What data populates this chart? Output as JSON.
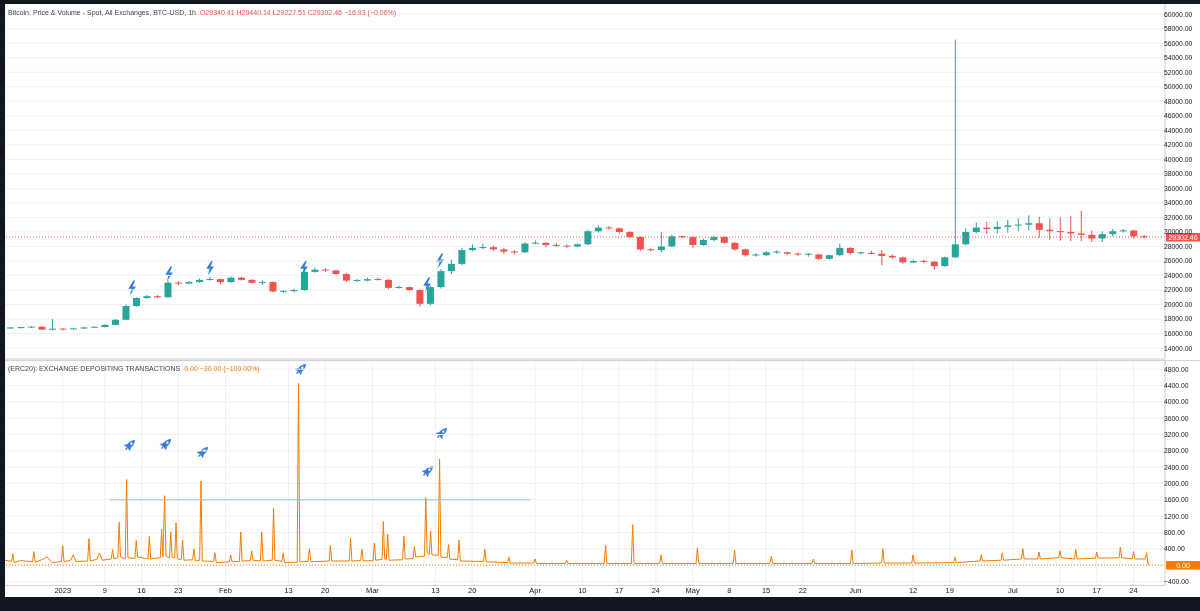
{
  "chart_data": [
    {
      "type": "candlestick",
      "title": "Bitcoin: Price & Volume - Spot, All Exchanges, BTC-USD, 1h",
      "subtitle": "O29340.41 H29440.14 L29227.51 C29302.46 −16.93 (−0.06%)",
      "x": [
        "2022-12-22",
        "2022-12-24",
        "2022-12-26",
        "2022-12-28",
        "2022-12-30",
        "2023-01-01",
        "2023-01-03",
        "2023-01-05",
        "2023-01-07",
        "2023-01-09",
        "2023-01-11",
        "2023-01-13",
        "2023-01-15",
        "2023-01-17",
        "2023-01-19",
        "2023-01-21",
        "2023-01-23",
        "2023-01-25",
        "2023-01-27",
        "2023-01-29",
        "2023-01-31",
        "2023-02-02",
        "2023-02-04",
        "2023-02-06",
        "2023-02-08",
        "2023-02-10",
        "2023-02-12",
        "2023-02-14",
        "2023-02-16",
        "2023-02-18",
        "2023-02-20",
        "2023-02-22",
        "2023-02-24",
        "2023-02-26",
        "2023-02-28",
        "2023-03-02",
        "2023-03-04",
        "2023-03-06",
        "2023-03-08",
        "2023-03-10",
        "2023-03-12",
        "2023-03-14",
        "2023-03-16",
        "2023-03-18",
        "2023-03-20",
        "2023-03-22",
        "2023-03-24",
        "2023-03-26",
        "2023-03-28",
        "2023-03-30",
        "2023-04-01",
        "2023-04-03",
        "2023-04-05",
        "2023-04-07",
        "2023-04-09",
        "2023-04-11",
        "2023-04-13",
        "2023-04-15",
        "2023-04-17",
        "2023-04-19",
        "2023-04-21",
        "2023-04-23",
        "2023-04-25",
        "2023-04-27",
        "2023-04-29",
        "2023-05-01",
        "2023-05-03",
        "2023-05-05",
        "2023-05-07",
        "2023-05-09",
        "2023-05-11",
        "2023-05-13",
        "2023-05-15",
        "2023-05-17",
        "2023-05-19",
        "2023-05-21",
        "2023-05-23",
        "2023-05-25",
        "2023-05-27",
        "2023-05-29",
        "2023-05-31",
        "2023-06-02",
        "2023-06-04",
        "2023-06-06",
        "2023-06-08",
        "2023-06-10",
        "2023-06-12",
        "2023-06-14",
        "2023-06-16",
        "2023-06-18",
        "2023-06-20",
        "2023-06-22",
        "2023-06-24",
        "2023-06-26",
        "2023-06-28",
        "2023-06-30",
        "2023-07-02",
        "2023-07-04",
        "2023-07-06",
        "2023-07-08",
        "2023-07-10",
        "2023-07-12",
        "2023-07-14",
        "2023-07-16",
        "2023-07-18",
        "2023-07-20",
        "2023-07-22",
        "2023-07-24",
        "2023-07-26"
      ],
      "ohlc": [
        [
          16750,
          16900,
          16650,
          16800
        ],
        [
          16800,
          16950,
          16700,
          16850
        ],
        [
          16850,
          17000,
          16750,
          16950
        ],
        [
          16950,
          17000,
          16500,
          16550
        ],
        [
          16550,
          18000,
          16450,
          16650
        ],
        [
          16650,
          16750,
          16450,
          16600
        ],
        [
          16600,
          16800,
          16550,
          16700
        ],
        [
          16700,
          16950,
          16650,
          16850
        ],
        [
          16850,
          17000,
          16800,
          16900
        ],
        [
          16900,
          17300,
          16850,
          17200
        ],
        [
          17200,
          18000,
          17150,
          17900
        ],
        [
          17900,
          20000,
          17850,
          19800
        ],
        [
          19800,
          21000,
          19700,
          20900
        ],
        [
          20900,
          21300,
          20800,
          21150
        ],
        [
          21150,
          21300,
          20900,
          21000
        ],
        [
          21000,
          23300,
          20950,
          23000
        ],
        [
          23000,
          23200,
          22700,
          22900
        ],
        [
          22900,
          23250,
          22800,
          23100
        ],
        [
          23100,
          23600,
          23000,
          23400
        ],
        [
          23400,
          23800,
          23300,
          23500
        ],
        [
          23500,
          23600,
          22800,
          23100
        ],
        [
          23100,
          23900,
          23000,
          23700
        ],
        [
          23700,
          23800,
          23300,
          23400
        ],
        [
          23400,
          23500,
          22900,
          23000
        ],
        [
          23000,
          23300,
          22700,
          23100
        ],
        [
          23100,
          23200,
          21700,
          21800
        ],
        [
          21800,
          22000,
          21600,
          21850
        ],
        [
          21850,
          22200,
          21700,
          22000
        ],
        [
          22000,
          24800,
          21900,
          24500
        ],
        [
          24500,
          25100,
          24400,
          24800
        ],
        [
          24800,
          25000,
          24500,
          24700
        ],
        [
          24700,
          24800,
          24100,
          24200
        ],
        [
          24200,
          24300,
          23100,
          23300
        ],
        [
          23300,
          23500,
          23100,
          23350
        ],
        [
          23300,
          23700,
          23200,
          23500
        ],
        [
          23500,
          23700,
          23300,
          23400
        ],
        [
          23400,
          23500,
          22100,
          22300
        ],
        [
          22300,
          22600,
          22200,
          22400
        ],
        [
          22400,
          22500,
          21900,
          22000
        ],
        [
          22000,
          22100,
          19700,
          20100
        ],
        [
          20100,
          22600,
          19900,
          22400
        ],
        [
          22400,
          24900,
          22200,
          24600
        ],
        [
          24600,
          26200,
          24200,
          25600
        ],
        [
          25600,
          27800,
          25400,
          27500
        ],
        [
          27500,
          28300,
          27300,
          27800
        ],
        [
          27800,
          28400,
          27600,
          27900
        ],
        [
          27900,
          28100,
          27400,
          27600
        ],
        [
          27600,
          27800,
          27000,
          27300
        ],
        [
          27300,
          27500,
          26900,
          27200
        ],
        [
          27200,
          28600,
          27100,
          28400
        ],
        [
          28400,
          28800,
          28300,
          28500
        ],
        [
          28500,
          28600,
          27900,
          28200
        ],
        [
          28200,
          28500,
          27900,
          28100
        ],
        [
          28100,
          28300,
          27800,
          28000
        ],
        [
          28000,
          28400,
          27900,
          28300
        ],
        [
          28300,
          30300,
          28200,
          30100
        ],
        [
          30100,
          30900,
          29900,
          30600
        ],
        [
          30600,
          30800,
          30300,
          30500
        ],
        [
          30500,
          30600,
          29800,
          30000
        ],
        [
          30000,
          30100,
          29100,
          29300
        ],
        [
          29300,
          29400,
          27400,
          27600
        ],
        [
          27600,
          27800,
          27300,
          27500
        ],
        [
          27500,
          30000,
          27200,
          28000
        ],
        [
          28000,
          29600,
          27900,
          29400
        ],
        [
          29400,
          29500,
          29100,
          29300
        ],
        [
          29300,
          29400,
          27800,
          28200
        ],
        [
          28200,
          29100,
          28100,
          28900
        ],
        [
          28900,
          29500,
          28700,
          29300
        ],
        [
          29300,
          29400,
          28400,
          28500
        ],
        [
          28500,
          28600,
          27400,
          27600
        ],
        [
          27600,
          27700,
          26600,
          26800
        ],
        [
          26800,
          27100,
          26600,
          26850
        ],
        [
          26800,
          27400,
          26700,
          27200
        ],
        [
          27200,
          27500,
          27000,
          27250
        ],
        [
          27200,
          27300,
          26800,
          27000
        ],
        [
          27000,
          27200,
          26700,
          26900
        ],
        [
          26900,
          27100,
          26600,
          26950
        ],
        [
          26900,
          27000,
          26100,
          26300
        ],
        [
          26300,
          26900,
          26200,
          26800
        ],
        [
          26800,
          28400,
          26700,
          27800
        ],
        [
          27800,
          27900,
          26900,
          27100
        ],
        [
          27100,
          27300,
          26900,
          27150
        ],
        [
          27100,
          27400,
          26900,
          27000
        ],
        [
          27000,
          27500,
          25400,
          26700
        ],
        [
          26700,
          26900,
          26300,
          26500
        ],
        [
          26500,
          26600,
          25600,
          25800
        ],
        [
          25800,
          26200,
          25700,
          26000
        ],
        [
          26000,
          26200,
          25700,
          25900
        ],
        [
          25900,
          26000,
          24800,
          25300
        ],
        [
          25300,
          26600,
          25200,
          26500
        ],
        [
          26500,
          56500,
          26400,
          28300
        ],
        [
          28300,
          30500,
          28200,
          30000
        ],
        [
          30000,
          31300,
          29800,
          30600
        ],
        [
          30600,
          31400,
          29700,
          30400
        ],
        [
          30400,
          31500,
          29800,
          30700
        ],
        [
          30700,
          31700,
          29900,
          30900
        ],
        [
          30900,
          31900,
          30100,
          31000
        ],
        [
          31000,
          32300,
          30200,
          31200
        ],
        [
          31200,
          32100,
          29200,
          30300
        ],
        [
          30300,
          31900,
          28900,
          30100
        ],
        [
          30100,
          32000,
          28800,
          30000
        ],
        [
          30000,
          32200,
          28700,
          29800
        ],
        [
          29800,
          32900,
          28700,
          29600
        ],
        [
          29600,
          30200,
          28600,
          29100
        ],
        [
          29100,
          30100,
          28600,
          29700
        ],
        [
          29700,
          30400,
          29400,
          30100
        ],
        [
          30100,
          30400,
          29900,
          30200
        ],
        [
          30200,
          30300,
          29100,
          29400
        ],
        [
          29400,
          29600,
          29100,
          29300
        ]
      ],
      "colors": [
        "#26a69a",
        "#26a69a",
        "#26a69a",
        "#ef5350",
        "#26a69a",
        "#ef5350",
        "#26a69a",
        "#26a69a",
        "#26a69a",
        "#26a69a",
        "#26a69a",
        "#26a69a",
        "#26a69a",
        "#26a69a",
        "#ef5350",
        "#26a69a",
        "#ef5350",
        "#26a69a",
        "#26a69a",
        "#26a69a",
        "#ef5350",
        "#26a69a",
        "#ef5350",
        "#ef5350",
        "#26a69a",
        "#ef5350",
        "#26a69a",
        "#26a69a",
        "#26a69a",
        "#26a69a",
        "#ef5350",
        "#ef5350",
        "#ef5350",
        "#26a69a",
        "#26a69a",
        "#ef5350",
        "#ef5350",
        "#26a69a",
        "#ef5350",
        "#ef5350",
        "#26a69a",
        "#26a69a",
        "#26a69a",
        "#26a69a",
        "#26a69a",
        "#26a69a",
        "#ef5350",
        "#ef5350",
        "#ef5350",
        "#26a69a",
        "#26a69a",
        "#ef5350",
        "#ef5350",
        "#ef5350",
        "#26a69a",
        "#26a69a",
        "#26a69a",
        "#ef5350",
        "#ef5350",
        "#ef5350",
        "#ef5350",
        "#ef5350",
        "#26a69a",
        "#26a69a",
        "#ef5350",
        "#ef5350",
        "#26a69a",
        "#26a69a",
        "#ef5350",
        "#ef5350",
        "#ef5350",
        "#26a69a",
        "#26a69a",
        "#26a69a",
        "#ef5350",
        "#ef5350",
        "#26a69a",
        "#ef5350",
        "#26a69a",
        "#26a69a",
        "#ef5350",
        "#26a69a",
        "#ef5350",
        "#ef5350",
        "#ef5350",
        "#ef5350",
        "#26a69a",
        "#ef5350",
        "#ef5350",
        "#26a69a",
        "#26a69a",
        "#26a69a",
        "#26a69a",
        "#ef5350",
        "#26a69a",
        "#26a69a",
        "#26a69a",
        "#26a69a",
        "#ef5350",
        "#ef5350",
        "#ef5350",
        "#ef5350",
        "#ef5350",
        "#ef5350",
        "#26a69a",
        "#26a69a",
        "#26a69a",
        "#ef5350",
        "#ef5350"
      ],
      "xlim": [
        "2022-12-21",
        "2023-07-30"
      ],
      "xticks": [
        {
          "value": "2023-01-01",
          "label": null
        },
        {
          "value": "2023-01-09",
          "label": null
        },
        {
          "value": "2023-01-16",
          "label": null
        },
        {
          "value": "2023-01-23",
          "label": null
        },
        {
          "value": "2023-02-01",
          "label": null
        },
        {
          "value": "2023-02-13",
          "label": null
        },
        {
          "value": "2023-02-20",
          "label": null
        },
        {
          "value": "2023-03-01",
          "label": null
        },
        {
          "value": "2023-03-13",
          "label": null
        },
        {
          "value": "2023-03-20",
          "label": null
        },
        {
          "value": "2023-04-01",
          "label": null
        },
        {
          "value": "2023-04-10",
          "label": null
        },
        {
          "value": "2023-04-17",
          "label": null
        },
        {
          "value": "2023-04-24",
          "label": null
        },
        {
          "value": "2023-05-01",
          "label": null
        },
        {
          "value": "2023-05-08",
          "label": null
        },
        {
          "value": "2023-05-15",
          "label": null
        },
        {
          "value": "2023-05-22",
          "label": null
        },
        {
          "value": "2023-06-01",
          "label": null
        },
        {
          "value": "2023-06-12",
          "label": null
        },
        {
          "value": "2023-06-19",
          "label": null
        },
        {
          "value": "2023-07-01",
          "label": null
        },
        {
          "value": "2023-07-10",
          "label": null
        },
        {
          "value": "2023-07-17",
          "label": null
        },
        {
          "value": "2023-07-24",
          "label": null
        }
      ],
      "ylim": [
        12500,
        61400
      ],
      "yticks": [
        {
          "value": 14000,
          "label": "14000.00"
        },
        {
          "value": 16000,
          "label": "16000.00"
        },
        {
          "value": 18000,
          "label": "18000.00"
        },
        {
          "value": 20000,
          "label": "20000.00"
        },
        {
          "value": 22000,
          "label": "22000.00"
        },
        {
          "value": 24000,
          "label": "24000.00"
        },
        {
          "value": 26000,
          "label": "26000.00"
        },
        {
          "value": 28000,
          "label": "28000.00"
        },
        {
          "value": 30000,
          "label": "30000.00"
        },
        {
          "value": 32000,
          "label": "32000.00"
        },
        {
          "value": 34000,
          "label": "34000.00"
        },
        {
          "value": 36000,
          "label": "36000.00"
        },
        {
          "value": 38000,
          "label": "38000.00"
        },
        {
          "value": 40000,
          "label": "40000.00"
        },
        {
          "value": 42000,
          "label": "42000.00"
        },
        {
          "value": 44000,
          "label": "44000.00"
        },
        {
          "value": 46000,
          "label": "46000.00"
        },
        {
          "value": 48000,
          "label": "48000.00"
        },
        {
          "value": 50000,
          "label": "50000.00"
        },
        {
          "value": 52000,
          "label": "52000.00"
        },
        {
          "value": 54000,
          "label": "54000.00"
        },
        {
          "value": 56000,
          "label": "56000.00"
        },
        {
          "value": 58000,
          "label": "58000.00"
        },
        {
          "value": 60000,
          "label": "60000.00"
        }
      ],
      "tick_labels": "y",
      "grid": true,
      "ref_lines": [
        {
          "axis": "y",
          "value": 29302.46,
          "label": "29302.46",
          "color": "#ef5350",
          "line_style": "dotted"
        }
      ]
    },
    {
      "type": "line",
      "title": "(ERC20): EXCHANGE DEPOSITING TRANSACTIONS",
      "subtitle": "0.00 −30.00 (−100.00%)",
      "series": [
        {
          "color": "#f57c00",
          "x": [
            "2022-12-21T00:00",
            "2022-12-22T06:00",
            "2022-12-22T12:00",
            "2022-12-22T18:00",
            "2022-12-24T00:00",
            "2022-12-26T06:00",
            "2022-12-26T12:00",
            "2022-12-26T18:00",
            "2022-12-28T00:00",
            "2022-12-29T00:00",
            "2022-12-30T00:00",
            "2022-12-31T18:00",
            "2023-01-01T00:00",
            "2023-01-01T06:00",
            "2023-01-02T12:00",
            "2023-01-03T00:00",
            "2023-01-03T12:00",
            "2023-01-05T18:00",
            "2023-01-06T00:00",
            "2023-01-06T06:00",
            "2023-01-07T12:00",
            "2023-01-08T00:00",
            "2023-01-08T12:00",
            "2023-01-10T06:00",
            "2023-01-10T12:00",
            "2023-01-10T18:00",
            "2023-01-11T12:00",
            "2023-01-11T18:00",
            "2023-01-12T00:00",
            "2023-01-12T22:00",
            "2023-01-13T04:00",
            "2023-01-13T10:00",
            "2023-01-14T18:00",
            "2023-01-15T00:00",
            "2023-01-15T06:00",
            "2023-01-17T06:00",
            "2023-01-17T12:00",
            "2023-01-17T18:00",
            "2023-01-19T14:00",
            "2023-01-19T20:00",
            "2023-01-20T02:00",
            "2023-01-20T10:00",
            "2023-01-20T16:00",
            "2023-01-21T08:00",
            "2023-01-21T14:00",
            "2023-01-21T20:00",
            "2023-01-22T08:00",
            "2023-01-22T14:00",
            "2023-01-22T20:00",
            "2023-01-23T14:00",
            "2023-01-23T20:00",
            "2023-01-24T02:00",
            "2023-01-25T18:00",
            "2023-01-26T00:00",
            "2023-01-26T06:00",
            "2023-01-27T02:00",
            "2023-01-27T08:00",
            "2023-01-27T14:00",
            "2023-01-29T18:00",
            "2023-01-30T00:00",
            "2023-01-30T06:00",
            "2023-02-01T18:00",
            "2023-02-02T00:00",
            "2023-02-02T06:00",
            "2023-02-03T16:00",
            "2023-02-03T22:00",
            "2023-02-04T04:00",
            "2023-02-05T18:00",
            "2023-02-06T00:00",
            "2023-02-06T06:00",
            "2023-02-07T16:00",
            "2023-02-07T22:00",
            "2023-02-08T04:00",
            "2023-02-09T22:00",
            "2023-02-10T04:00",
            "2023-02-10T10:00",
            "2023-02-11T18:00",
            "2023-02-12T00:00",
            "2023-02-12T06:00",
            "2023-02-14T16:00",
            "2023-02-14T22:00",
            "2023-02-15T04:00",
            "2023-02-16T18:00",
            "2023-02-17T00:00",
            "2023-02-17T06:00",
            "2023-02-20T18:00",
            "2023-02-21T00:00",
            "2023-02-21T06:00",
            "2023-02-24T14:00",
            "2023-02-24T20:00",
            "2023-02-25T02:00",
            "2023-02-26T18:00",
            "2023-02-27T00:00",
            "2023-02-27T06:00",
            "2023-03-01T03:00",
            "2023-03-01T09:00",
            "2023-03-01T15:00",
            "2023-03-02T20:00",
            "2023-03-03T02:00",
            "2023-03-03T08:00",
            "2023-03-03T16:00",
            "2023-03-03T22:00",
            "2023-03-04T04:00",
            "2023-03-06T18:00",
            "2023-03-07T00:00",
            "2023-03-07T06:00",
            "2023-03-08T18:00",
            "2023-03-09T00:00",
            "2023-03-09T06:00",
            "2023-03-10T22:00",
            "2023-03-11T04:00",
            "2023-03-11T10:00",
            "2023-03-11T20:00",
            "2023-03-12T02:00",
            "2023-03-12T08:00",
            "2023-03-13T13:00",
            "2023-03-13T19:00",
            "2023-03-14T01:00",
            "2023-03-15T06:00",
            "2023-03-15T12:00",
            "2023-03-15T18:00",
            "2023-03-17T06:00",
            "2023-03-17T12:00",
            "2023-03-17T18:00",
            "2023-03-22T04:00",
            "2023-03-22T10:00",
            "2023-03-22T16:00",
            "2023-03-26T18:00",
            "2023-03-27T00:00",
            "2023-03-27T06:00",
            "2023-03-31T18:00",
            "2023-04-01T00:00",
            "2023-04-01T06:00",
            "2023-04-06T18:00",
            "2023-04-07T00:00",
            "2023-04-07T06:00",
            "2023-04-14T04:00",
            "2023-04-14T10:00",
            "2023-04-14T16:00",
            "2023-04-19T08:00",
            "2023-04-19T14:00",
            "2023-04-19T20:00",
            "2023-04-24T18:00",
            "2023-04-25T00:00",
            "2023-04-25T06:00",
            "2023-05-01T16:00",
            "2023-05-01T22:00",
            "2023-05-02T04:00",
            "2023-05-08T18:00",
            "2023-05-09T00:00",
            "2023-05-09T06:00",
            "2023-05-15T18:00",
            "2023-05-16T00:00",
            "2023-05-16T06:00",
            "2023-05-23T18:00",
            "2023-05-24T00:00",
            "2023-05-24T06:00",
            "2023-05-31T02:00",
            "2023-05-31T08:00",
            "2023-05-31T14:00",
            "2023-06-06T00:00",
            "2023-06-06T06:00",
            "2023-06-06T12:00",
            "2023-06-11T18:00",
            "2023-06-12T00:00",
            "2023-06-12T06:00",
            "2023-06-19T18:00",
            "2023-06-20T00:00",
            "2023-06-20T06:00",
            "2023-06-24T18:00",
            "2023-06-25T00:00",
            "2023-06-25T06:00",
            "2023-06-28T18:00",
            "2023-06-29T00:00",
            "2023-06-29T06:00",
            "2023-07-02T16:00",
            "2023-07-02T22:00",
            "2023-07-03T04:00",
            "2023-07-05T18:00",
            "2023-07-06T00:00",
            "2023-07-06T06:00",
            "2023-07-09T18:00",
            "2023-07-10T00:00",
            "2023-07-10T06:00",
            "2023-07-12T18:00",
            "2023-07-13T00:00",
            "2023-07-13T06:00",
            "2023-07-16T18:00",
            "2023-07-17T00:00",
            "2023-07-17T06:00",
            "2023-07-21T06:00",
            "2023-07-21T12:00",
            "2023-07-21T18:00",
            "2023-07-23T18:00",
            "2023-07-24T00:00",
            "2023-07-24T06:00",
            "2023-07-26T06:00",
            "2023-07-26T12:00",
            "2023-07-26T18:00",
            "2023-07-27T00:00"
          ],
          "values": [
            120,
            90,
            280,
            60,
            110,
            80,
            330,
            70,
            130,
            200,
            60,
            90,
            470,
            80,
            120,
            250,
            90,
            100,
            650,
            100,
            140,
            300,
            120,
            150,
            380,
            150,
            180,
            1050,
            200,
            150,
            2100,
            180,
            160,
            600,
            200,
            150,
            700,
            150,
            180,
            880,
            200,
            1700,
            220,
            180,
            810,
            200,
            180,
            1030,
            150,
            140,
            610,
            120,
            130,
            400,
            100,
            120,
            2060,
            100,
            90,
            300,
            60,
            80,
            250,
            80,
            90,
            810,
            100,
            110,
            350,
            120,
            100,
            810,
            100,
            120,
            1400,
            120,
            90,
            300,
            60,
            70,
            4450,
            80,
            90,
            400,
            80,
            100,
            480,
            100,
            100,
            660,
            100,
            110,
            390,
            100,
            110,
            540,
            120,
            140,
            1070,
            150,
            140,
            760,
            120,
            130,
            710,
            150,
            160,
            450,
            200,
            220,
            1650,
            300,
            260,
            830,
            250,
            240,
            2600,
            200,
            180,
            500,
            150,
            130,
            610,
            100,
            90,
            390,
            80,
            60,
            200,
            50,
            50,
            150,
            40,
            40,
            120,
            40,
            40,
            490,
            40,
            40,
            990,
            40,
            40,
            250,
            40,
            40,
            420,
            40,
            40,
            370,
            40,
            40,
            220,
            40,
            40,
            150,
            40,
            40,
            370,
            40,
            50,
            400,
            50,
            50,
            250,
            50,
            60,
            200,
            60,
            100,
            250,
            100,
            120,
            300,
            120,
            150,
            400,
            150,
            150,
            320,
            150,
            180,
            350,
            180,
            150,
            380,
            150,
            170,
            320,
            170,
            180,
            440,
            180,
            150,
            330,
            150,
            150,
            300,
            30,
            0
          ]
        },
        {
          "type": "line",
          "color": "#8ec3e6",
          "x": [
            "2023-01-10T00:00",
            "2023-03-31T00:00"
          ],
          "values": [
            1600,
            1600
          ]
        }
      ],
      "xlim": [
        "2022-12-21",
        "2023-07-30"
      ],
      "xticks": [
        {
          "value": "2023-01-01",
          "label": "2023"
        },
        {
          "value": "2023-01-09",
          "label": "9"
        },
        {
          "value": "2023-01-16",
          "label": "16"
        },
        {
          "value": "2023-01-23",
          "label": "23"
        },
        {
          "value": "2023-02-01",
          "label": "Feb"
        },
        {
          "value": "2023-02-13",
          "label": "13"
        },
        {
          "value": "2023-02-20",
          "label": "20"
        },
        {
          "value": "2023-03-01",
          "label": "Mar"
        },
        {
          "value": "2023-03-13",
          "label": "13"
        },
        {
          "value": "2023-03-20",
          "label": "20"
        },
        {
          "value": "2023-04-01",
          "label": "Apr"
        },
        {
          "value": "2023-04-10",
          "label": "10"
        },
        {
          "value": "2023-04-17",
          "label": "17"
        },
        {
          "value": "2023-04-24",
          "label": "24"
        },
        {
          "value": "2023-05-01",
          "label": "May"
        },
        {
          "value": "2023-05-08",
          "label": "8"
        },
        {
          "value": "2023-05-15",
          "label": "15"
        },
        {
          "value": "2023-05-22",
          "label": "22"
        },
        {
          "value": "2023-06-01",
          "label": "Jun"
        },
        {
          "value": "2023-06-12",
          "label": "12"
        },
        {
          "value": "2023-06-19",
          "label": "19"
        },
        {
          "value": "2023-07-01",
          "label": "Jul"
        },
        {
          "value": "2023-07-10",
          "label": "10"
        },
        {
          "value": "2023-07-17",
          "label": "17"
        },
        {
          "value": "2023-07-24",
          "label": "24"
        }
      ],
      "ylim": [
        -500,
        5000
      ],
      "yticks": [
        {
          "value": -400,
          "label": "−400.00"
        },
        {
          "value": 0,
          "label": null
        },
        {
          "value": 400,
          "label": "400.00"
        },
        {
          "value": 800,
          "label": "800.00"
        },
        {
          "value": 1200,
          "label": "1200.00"
        },
        {
          "value": 1600,
          "label": "1600.00"
        },
        {
          "value": 2000,
          "label": "2000.00"
        },
        {
          "value": 2400,
          "label": "2400.00"
        },
        {
          "value": 2800,
          "label": "2800.00"
        },
        {
          "value": 3200,
          "label": "3200.00"
        },
        {
          "value": 3600,
          "label": "3600.00"
        },
        {
          "value": 4000,
          "label": "4000.00"
        },
        {
          "value": 4400,
          "label": "4400.00"
        },
        {
          "value": 4800,
          "label": "4800.00"
        }
      ],
      "grid": true,
      "ref_lines": [
        {
          "axis": "y",
          "value": 0,
          "label": "0.00",
          "color": "#f57c00",
          "line_style": "dotted"
        }
      ]
    }
  ]
}
